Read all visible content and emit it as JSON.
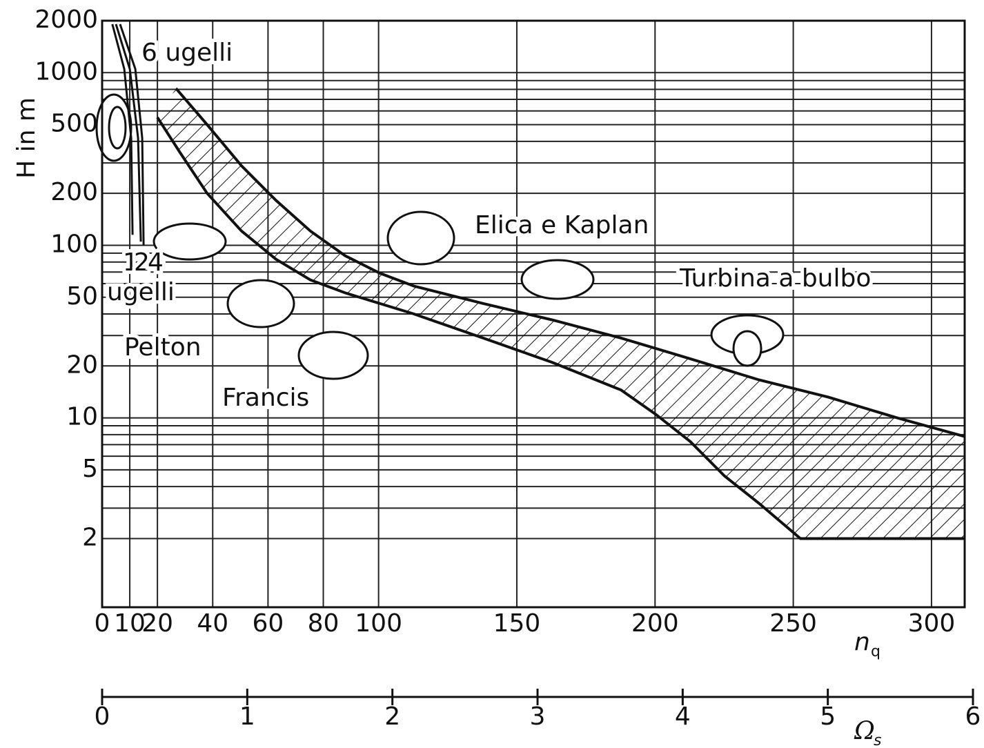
{
  "chart_data": {
    "type": "line",
    "y_label": "H in m",
    "x_label": {
      "symbol": "n",
      "subscript": "q"
    },
    "x2_label": {
      "symbol": "Ω",
      "subscript": "s"
    },
    "xlim": [
      0,
      312
    ],
    "xticks": [
      0,
      10,
      20,
      40,
      60,
      80,
      100,
      150,
      200,
      250,
      300
    ],
    "ylim": [
      0.8,
      2000
    ],
    "yscale": "log",
    "yticks": [
      2,
      5,
      10,
      20,
      50,
      100,
      200,
      500,
      1000,
      2000
    ],
    "y_minor_grid": [
      3,
      4,
      6,
      7,
      8,
      9,
      30,
      40,
      60,
      70,
      80,
      90,
      300,
      400,
      600,
      700,
      800,
      900
    ],
    "grid": true,
    "x2lim": [
      0,
      6
    ],
    "x2ticks": [
      0,
      1,
      2,
      3,
      4,
      5,
      6
    ],
    "band": {
      "upper_x": [
        26.7,
        37.9,
        50.4,
        62.9,
        75.3,
        87.9,
        100.4,
        112.8,
        137.8,
        162.7,
        187.7,
        212.7,
        237.6,
        262.6,
        287.6,
        312
      ],
      "upper_y": [
        811,
        502,
        289,
        182,
        121,
        87,
        69,
        58,
        46,
        37,
        29,
        22,
        16.6,
        13.2,
        10,
        7.8
      ],
      "lower_x": [
        20,
        28,
        38,
        50.4,
        62.9,
        75.3,
        87.9,
        112.8,
        137.8,
        162.7,
        187.7,
        200.2,
        212.7,
        225.2,
        237.6,
        252.6,
        312
      ],
      "lower_y": [
        551,
        348,
        200,
        121,
        83,
        63,
        53,
        40,
        29,
        21,
        14.5,
        10.5,
        7.3,
        4.6,
        3.2,
        2,
        2
      ]
    },
    "pelton_curves": [
      {
        "x": [
          3.7,
          8,
          10.5,
          11
        ],
        "y": [
          1910,
          1050,
          418,
          115
        ]
      },
      {
        "x": [
          5,
          10,
          13,
          14
        ],
        "y": [
          1910,
          1050,
          418,
          105
        ]
      },
      {
        "x": [
          6.5,
          12,
          14.5,
          15
        ],
        "y": [
          1910,
          1050,
          418,
          100
        ]
      }
    ],
    "annotations": [
      "6 ugelli",
      "1",
      "2",
      "4",
      "ugelli",
      "Pelton",
      "Francis",
      "Elica e Kaplan",
      "Turbina a bulbo"
    ]
  }
}
